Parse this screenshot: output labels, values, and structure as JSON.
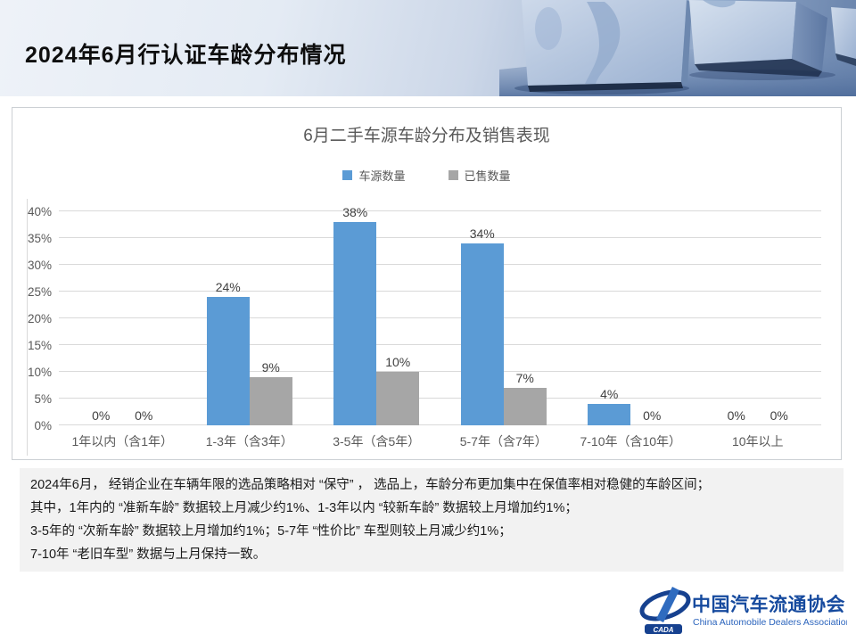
{
  "header": {
    "title": "2024年6月行认证车龄分布情况"
  },
  "chart_data": {
    "type": "bar",
    "title": "6月二手车源车龄分布及销售表现",
    "categories": [
      "1年以内（含1年）",
      "1-3年（含3年）",
      "3-5年（含5年）",
      "5-7年（含7年）",
      "7-10年（含10年）",
      "10年以上"
    ],
    "series": [
      {
        "name": "车源数量",
        "color": "#5B9BD5",
        "values": [
          0,
          24,
          38,
          34,
          4,
          0
        ]
      },
      {
        "name": "已售数量",
        "color": "#A6A6A6",
        "values": [
          0,
          9,
          10,
          7,
          0,
          0
        ]
      }
    ],
    "ylim": [
      0,
      40
    ],
    "ytick_step": 5,
    "ytick_labels": [
      "0%",
      "5%",
      "10%",
      "15%",
      "20%",
      "25%",
      "30%",
      "35%",
      "40%"
    ],
    "value_label_suffix": "%",
    "grid": true,
    "legend_position": "top"
  },
  "summary": {
    "lines": [
      "2024年6月， 经销企业在车辆年限的选品策略相对 “保守” ， 选品上，车龄分布更加集中在保值率相对稳健的车龄区间；",
      "其中，1年内的 “准新车龄” 数据较上月减少约1%、1-3年以内 “较新车龄” 数据较上月增加约1%；",
      "3-5年的 “次新车龄” 数据较上月增加约1%；5-7年 “性价比” 车型则较上月减少约1%；",
      "7-10年 “老旧车型” 数据与上月保持一致。"
    ]
  },
  "footer": {
    "logo": {
      "badge": "CADA",
      "org_cn": "中国汽车流通协会",
      "org_en": "China Automobile Dealers Association"
    }
  },
  "colors": {
    "series_blue": "#5B9BD5",
    "series_gray": "#A6A6A6",
    "gridline": "#D9D9D9",
    "axis_text": "#595959",
    "summary_bg": "#F2F2F2",
    "logo_blue": "#16418F"
  }
}
